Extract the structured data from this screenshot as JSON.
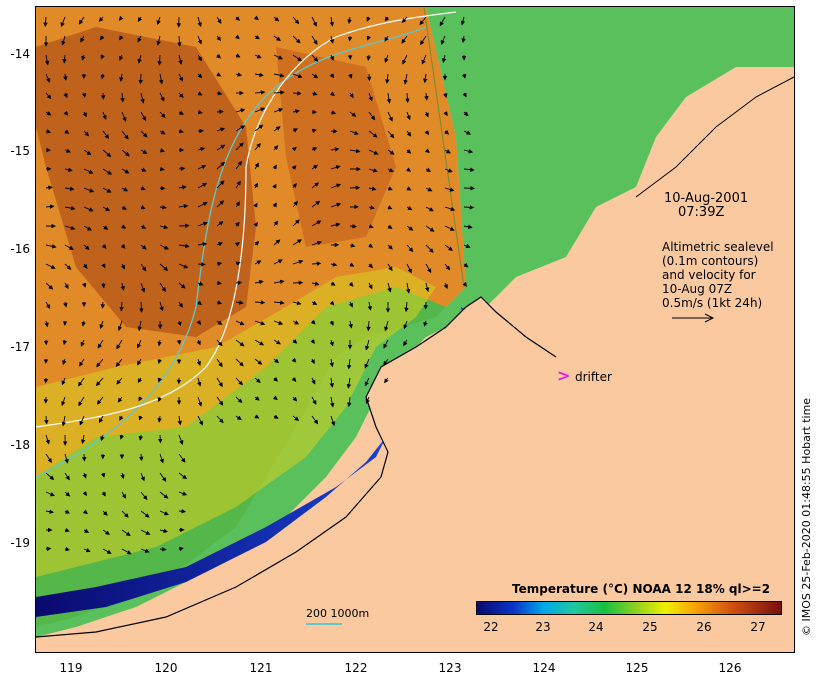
{
  "map": {
    "y_ticks": [
      "-14",
      "-15",
      "-16",
      "-17",
      "-18",
      "-19"
    ],
    "x_ticks": [
      "119",
      "120",
      "121",
      "122",
      "123",
      "124",
      "125",
      "126"
    ],
    "date": "10-Aug-2001",
    "time": "07:39Z",
    "altimetry_lines": [
      "Altimetric sealevel",
      "(0.1m contours)",
      "and velocity for",
      "10-Aug 07Z",
      "0.5m/s (1kt 24h)"
    ],
    "drifter_label": "drifter",
    "contour_key": "200  1000m",
    "colorbar_title": "Temperature (°C) NOAA 12 18% ql>=2",
    "colorbar_ticks": [
      "22",
      "23",
      "24",
      "25",
      "26",
      "27"
    ],
    "credit": "© IMOS 25-Feb-2020 01:48:55 Hobart time",
    "colors": {
      "land": "#fbc9a0",
      "drifter": "#e020e0",
      "contour_200": "#5fc8c8",
      "contour_1000": "#ffffff"
    }
  }
}
